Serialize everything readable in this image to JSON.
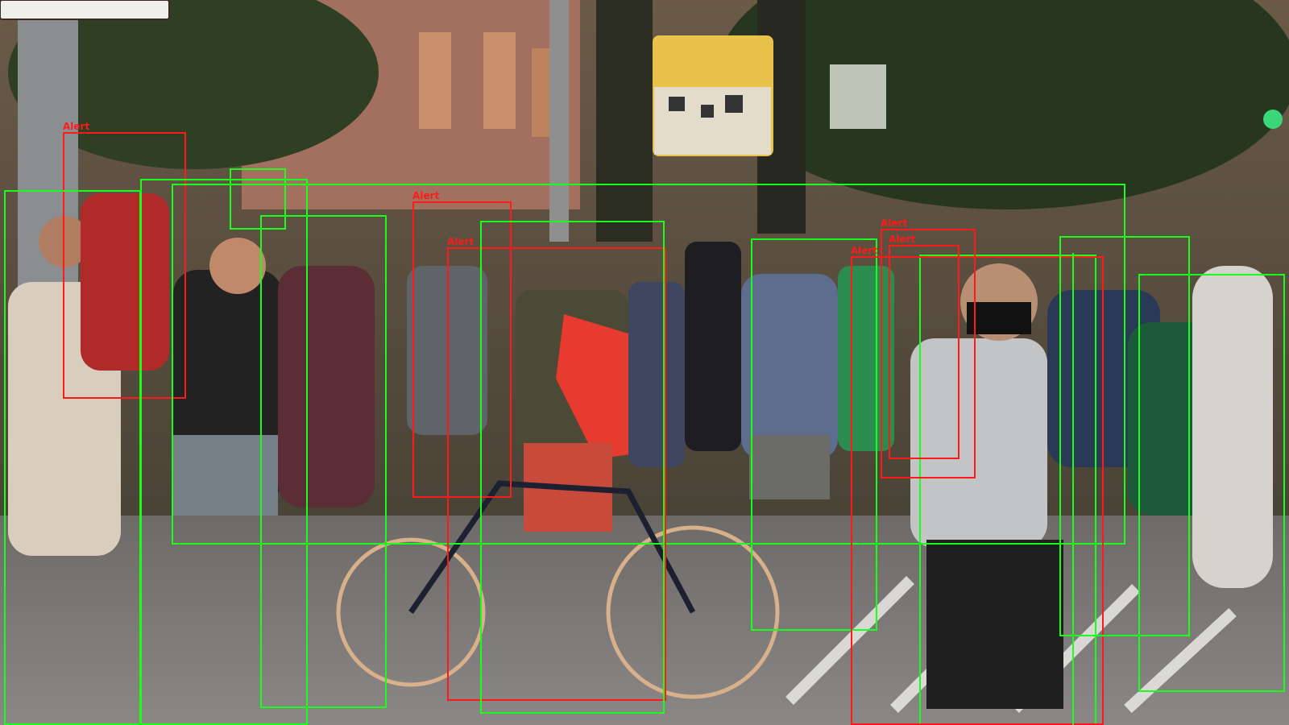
{
  "image": {
    "description_tags": [
      "street-crowd",
      "pedestrians",
      "bicycle",
      "red-backpack",
      "trees",
      "traffic-sign",
      "crosswalk"
    ]
  },
  "colors": {
    "alert_box": "#ff1a1a",
    "normal_box": "#1aff1a"
  },
  "detections": [
    {
      "id": "d1",
      "status": "alert",
      "label": "Alert"
    },
    {
      "id": "d2",
      "status": "normal",
      "label": ""
    },
    {
      "id": "d3",
      "status": "normal",
      "label": ""
    },
    {
      "id": "d4",
      "status": "normal",
      "label": ""
    },
    {
      "id": "d5",
      "status": "normal",
      "label": ""
    },
    {
      "id": "d6",
      "status": "normal",
      "label": ""
    },
    {
      "id": "d7",
      "status": "alert",
      "label": "Alert"
    },
    {
      "id": "d8",
      "status": "alert",
      "label": "Alert"
    },
    {
      "id": "d9",
      "status": "normal",
      "label": ""
    },
    {
      "id": "d10",
      "status": "normal",
      "label": ""
    },
    {
      "id": "d11",
      "status": "normal",
      "label": ""
    },
    {
      "id": "d12",
      "status": "alert",
      "label": "Alert"
    },
    {
      "id": "d13",
      "status": "alert",
      "label": "Alert"
    },
    {
      "id": "d14",
      "status": "alert",
      "label": "Alert"
    },
    {
      "id": "d15",
      "status": "normal",
      "label": ""
    },
    {
      "id": "d16",
      "status": "normal",
      "label": ""
    },
    {
      "id": "d17",
      "status": "normal",
      "label": ""
    }
  ]
}
